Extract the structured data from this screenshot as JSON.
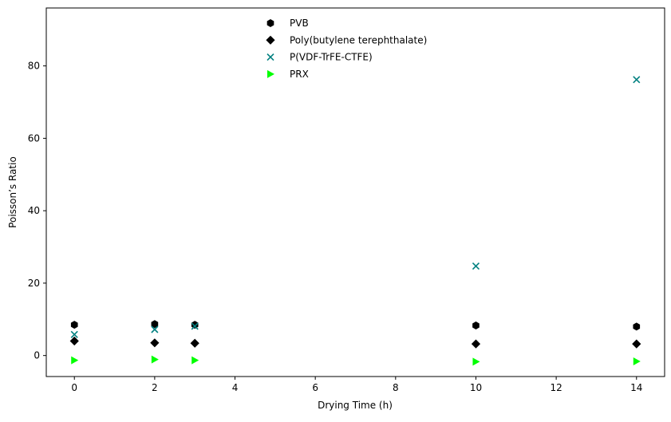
{
  "chart_data": {
    "type": "scatter",
    "title": "",
    "xlabel": "Drying Time (h)",
    "ylabel": "Poisson’s Ratio",
    "xlim": [
      -0.7,
      14.7
    ],
    "ylim": [
      -5.8,
      96
    ],
    "xticks": [
      0,
      2,
      4,
      6,
      8,
      10,
      12,
      14
    ],
    "yticks": [
      0,
      20,
      40,
      60,
      80
    ],
    "grid": false,
    "legend_position": "top-center",
    "series": [
      {
        "name": "PVB",
        "marker": "hexagon",
        "color": "#000000",
        "points": [
          {
            "x": 0,
            "y": 8.5
          },
          {
            "x": 2,
            "y": 8.7
          },
          {
            "x": 3,
            "y": 8.5
          },
          {
            "x": 10,
            "y": 8.3
          },
          {
            "x": 14,
            "y": 8.0
          }
        ]
      },
      {
        "name": "Poly(butylene terephthalate)",
        "marker": "diamond",
        "color": "#000000",
        "points": [
          {
            "x": 0,
            "y": 4.0
          },
          {
            "x": 2,
            "y": 3.5
          },
          {
            "x": 3,
            "y": 3.4
          },
          {
            "x": 10,
            "y": 3.2
          },
          {
            "x": 14,
            "y": 3.2
          }
        ]
      },
      {
        "name": "P(VDF-TrFE-CTFE)",
        "marker": "x",
        "color": "#008080",
        "points": [
          {
            "x": 0,
            "y": 5.8
          },
          {
            "x": 2,
            "y": 7.2
          },
          {
            "x": 3,
            "y": 8.1
          },
          {
            "x": 10,
            "y": 24.7
          },
          {
            "x": 14,
            "y": 76.2
          }
        ]
      },
      {
        "name": "PRX",
        "marker": "triangle-right",
        "color": "#00ff00",
        "points": [
          {
            "x": 0,
            "y": -1.3
          },
          {
            "x": 2,
            "y": -1.1
          },
          {
            "x": 3,
            "y": -1.3
          },
          {
            "x": 10,
            "y": -1.7
          },
          {
            "x": 14,
            "y": -1.6
          }
        ]
      }
    ]
  }
}
